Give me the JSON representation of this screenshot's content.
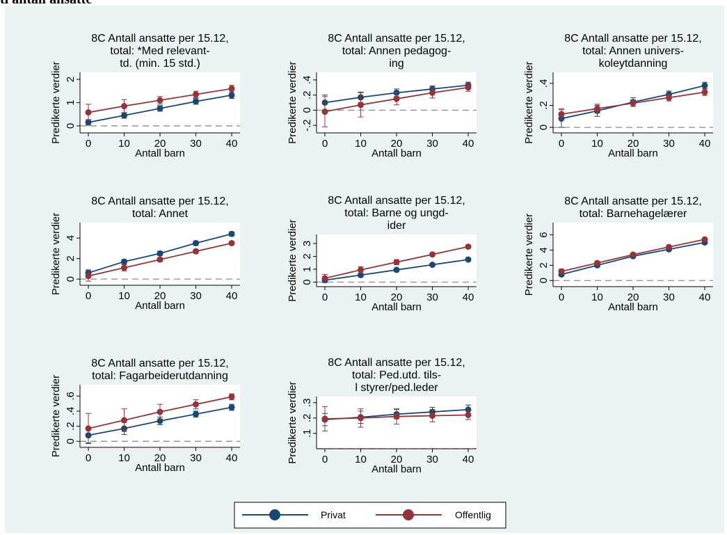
{
  "figure": {
    "title": "ti antall ansatte",
    "colors": {
      "background": "#eaf2f3",
      "plot_area": "#ffffff",
      "privat": "#1a476f",
      "offentlig": "#90353b",
      "reference_line": "#8c8c8c"
    }
  },
  "legend": {
    "items": [
      {
        "label": "Privat",
        "color": "#1a476f"
      },
      {
        "label": "Offentlig",
        "color": "#90353b"
      }
    ]
  },
  "chart_data": [
    {
      "type": "line",
      "title": [
        "8C Antall ansatte per 15.12,",
        "total: *Med relevant-",
        "td. (min. 15 std.)"
      ],
      "xlabel": "Antall barn",
      "ylabel": "Predikerte verdier",
      "x": [
        0,
        10,
        20,
        30,
        40
      ],
      "xticks": [
        0,
        10,
        20,
        30,
        40
      ],
      "ylim": [
        -0.3,
        2.3
      ],
      "yticks": [
        0,
        1,
        2
      ],
      "series": [
        {
          "name": "Privat",
          "values": [
            0.15,
            0.45,
            0.75,
            1.05,
            1.32
          ],
          "ci": [
            0.12,
            0.12,
            0.12,
            0.12,
            0.14
          ]
        },
        {
          "name": "Offentlig",
          "values": [
            0.58,
            0.85,
            1.1,
            1.35,
            1.6
          ],
          "ci": [
            0.35,
            0.28,
            0.16,
            0.14,
            0.14
          ]
        }
      ]
    },
    {
      "type": "line",
      "title": [
        "8C Antall ansatte per 15.12,",
        "total: Annen pedagog-",
        "ing"
      ],
      "xlabel": "Antall barn",
      "ylabel": "Predikerte verdier",
      "x": [
        0,
        10,
        20,
        30,
        40
      ],
      "xticks": [
        0,
        10,
        20,
        30,
        40
      ],
      "ylim": [
        -0.3,
        0.5
      ],
      "yticks": [
        -0.2,
        0,
        0.2,
        0.4
      ],
      "yticklabels": [
        "-.2",
        "0",
        ".2",
        ".4"
      ],
      "series": [
        {
          "name": "Privat",
          "values": [
            0.1,
            0.17,
            0.23,
            0.28,
            0.33
          ],
          "ci": [
            0.1,
            0.07,
            0.05,
            0.04,
            0.04
          ]
        },
        {
          "name": "Offentlig",
          "values": [
            -0.02,
            0.07,
            0.15,
            0.23,
            0.3
          ],
          "ci": [
            0.2,
            0.16,
            0.08,
            0.07,
            0.05
          ]
        }
      ]
    },
    {
      "type": "line",
      "title": [
        "8C Antall ansatte per 15.12,",
        "total: Annen univers-",
        "koleytdanning"
      ],
      "xlabel": "Antall barn",
      "ylabel": "Predikerte verdier",
      "x": [
        0,
        10,
        20,
        30,
        40
      ],
      "xticks": [
        0,
        10,
        20,
        30,
        40
      ],
      "ylim": [
        -0.05,
        0.5
      ],
      "yticks": [
        0,
        0.2,
        0.4
      ],
      "yticklabels": [
        "0",
        ".2",
        ".4"
      ],
      "series": [
        {
          "name": "Privat",
          "values": [
            0.08,
            0.15,
            0.23,
            0.3,
            0.38
          ],
          "ci": [
            0.08,
            0.05,
            0.04,
            0.03,
            0.03
          ]
        },
        {
          "name": "Offentlig",
          "values": [
            0.12,
            0.17,
            0.22,
            0.27,
            0.32
          ],
          "ci": [
            0.05,
            0.04,
            0.03,
            0.03,
            0.03
          ]
        }
      ]
    },
    {
      "type": "line",
      "title": [
        "8C Antall ansatte per 15.12,",
        "total: Annet"
      ],
      "xlabel": "Antall barn",
      "ylabel": "Predikerte verdier",
      "x": [
        0,
        10,
        20,
        30,
        40
      ],
      "xticks": [
        0,
        10,
        20,
        30,
        40
      ],
      "ylim": [
        -0.6,
        5.5
      ],
      "yticks": [
        0,
        2,
        4
      ],
      "series": [
        {
          "name": "Privat",
          "values": [
            0.6,
            1.7,
            2.5,
            3.5,
            4.4
          ],
          "ci": [
            0.3,
            0.2,
            0.2,
            0.2,
            0.2
          ]
        },
        {
          "name": "Offentlig",
          "values": [
            0.3,
            1.1,
            1.9,
            2.7,
            3.5
          ],
          "ci": [
            0.5,
            0.3,
            0.2,
            0.2,
            0.15
          ]
        }
      ]
    },
    {
      "type": "line",
      "title": [
        "8C Antall ansatte per 15.12,",
        "total: Barne og ungd-",
        "ider"
      ],
      "xlabel": "Antall barn",
      "ylabel": "Predikerte verdier",
      "x": [
        0,
        10,
        20,
        30,
        40
      ],
      "xticks": [
        0,
        10,
        20,
        30,
        40
      ],
      "ylim": [
        -0.35,
        3.7
      ],
      "yticks": [
        0,
        1,
        2,
        3
      ],
      "series": [
        {
          "name": "Privat",
          "values": [
            0.15,
            0.55,
            0.95,
            1.35,
            1.75
          ],
          "ci": [
            0.18,
            0.15,
            0.12,
            0.1,
            0.1
          ]
        },
        {
          "name": "Offentlig",
          "values": [
            0.3,
            0.95,
            1.55,
            2.15,
            2.75
          ],
          "ci": [
            0.3,
            0.25,
            0.2,
            0.12,
            0.1
          ]
        }
      ]
    },
    {
      "type": "line",
      "title": [
        "8C Antall ansatte per 15.12,",
        "total: Barnehagelærer"
      ],
      "xlabel": "Antall barn",
      "ylabel": "Predikerte verdier",
      "x": [
        0,
        10,
        20,
        30,
        40
      ],
      "xticks": [
        0,
        10,
        20,
        30,
        40
      ],
      "ylim": [
        -0.8,
        7.6
      ],
      "yticks": [
        0,
        2,
        4,
        6
      ],
      "series": [
        {
          "name": "Privat",
          "values": [
            0.8,
            2.0,
            3.2,
            4.1,
            5.0
          ],
          "ci": [
            0.2,
            0.2,
            0.15,
            0.15,
            0.15
          ]
        },
        {
          "name": "Offentlig",
          "values": [
            1.2,
            2.3,
            3.4,
            4.4,
            5.4
          ],
          "ci": [
            0.3,
            0.2,
            0.15,
            0.15,
            0.15
          ]
        }
      ]
    },
    {
      "type": "line",
      "title": [
        "8C Antall ansatte per 15.12,",
        "total: Fagarbeiderutdanning"
      ],
      "xlabel": "Antall barn",
      "ylabel": "Predikerte verdier",
      "x": [
        0,
        10,
        20,
        30,
        40
      ],
      "xticks": [
        0,
        10,
        20,
        30,
        40
      ],
      "ylim": [
        -0.08,
        0.75
      ],
      "yticks": [
        0,
        0.2,
        0.4,
        0.6
      ],
      "yticklabels": [
        "0",
        ".2",
        ".4",
        ".6"
      ],
      "series": [
        {
          "name": "Privat",
          "values": [
            0.08,
            0.17,
            0.27,
            0.36,
            0.45
          ],
          "ci": [
            0.1,
            0.08,
            0.05,
            0.04,
            0.04
          ]
        },
        {
          "name": "Offentlig",
          "values": [
            0.17,
            0.28,
            0.39,
            0.49,
            0.59
          ],
          "ci": [
            0.2,
            0.15,
            0.1,
            0.06,
            0.04
          ]
        }
      ]
    },
    {
      "type": "line",
      "title": [
        "8C Antall ansatte per 15.12,",
        "total: Ped.utd. tils-",
        "l styrer/ped.leder"
      ],
      "xlabel": "Antall barn",
      "ylabel": "Predikerte verdier",
      "x": [
        0,
        10,
        20,
        30,
        40
      ],
      "xticks": [
        0,
        10,
        20,
        30,
        40
      ],
      "ylim": [
        0.0,
        0.34
      ],
      "yticks": [
        0.1,
        0.2,
        0.3
      ],
      "yticklabels": [
        ".1",
        ".2",
        ".3"
      ],
      "series": [
        {
          "name": "Privat",
          "values": [
            0.19,
            0.205,
            0.225,
            0.24,
            0.255
          ],
          "ci": [
            0.04,
            0.04,
            0.03,
            0.03,
            0.03
          ]
        },
        {
          "name": "Offentlig",
          "values": [
            0.195,
            0.2,
            0.21,
            0.215,
            0.22
          ],
          "ci": [
            0.08,
            0.06,
            0.05,
            0.04,
            0.03
          ]
        }
      ]
    }
  ]
}
